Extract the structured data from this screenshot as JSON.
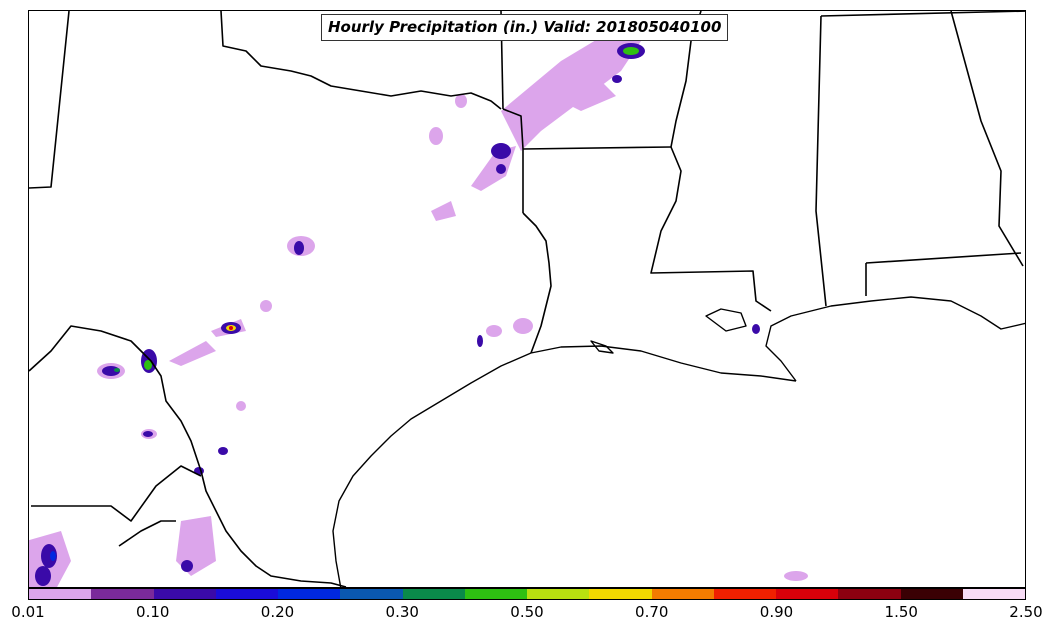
{
  "title": "Hourly Precipitation (in.) Valid: 201805040100",
  "colorbar": {
    "colors": [
      "#dca5eb",
      "#7a2a9a",
      "#3a0aa8",
      "#1a0cd8",
      "#0028e0",
      "#0a58b0",
      "#0a8a4a",
      "#2ec012",
      "#b8e010",
      "#f2d800",
      "#f47c00",
      "#f02000",
      "#d8000a",
      "#8c0010",
      "#3a0004",
      "#f8dcf6"
    ],
    "tick_labels": [
      "0.01",
      "0.10",
      "0.20",
      "0.30",
      "0.50",
      "0.70",
      "0.90",
      "1.50",
      "2.50"
    ]
  },
  "precip_cells": [
    {
      "level": 1,
      "kind": "light"
    },
    {
      "level": 3,
      "kind": "moderate"
    },
    {
      "level": 8,
      "kind": "heavy"
    }
  ]
}
